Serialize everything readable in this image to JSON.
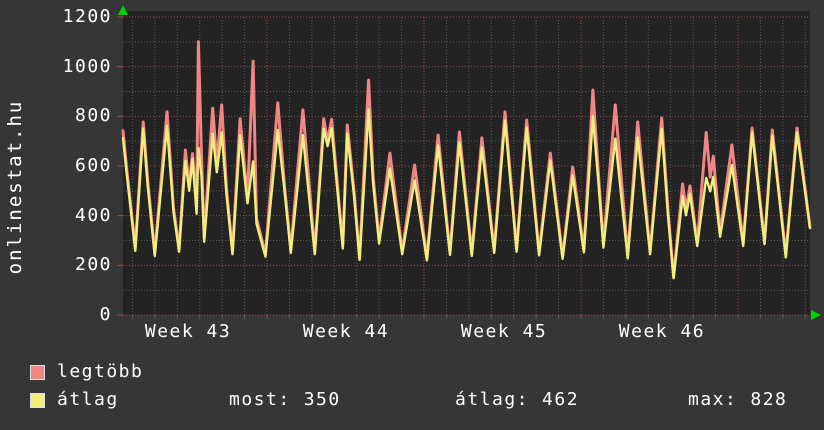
{
  "watermark": "onlinestat.hu",
  "chart_data": {
    "type": "line",
    "title": "",
    "ylabel": "",
    "xlabel": "",
    "ylim": [
      0,
      1200
    ],
    "y_major_ticks": [
      0,
      200,
      400,
      600,
      800,
      1000,
      1200
    ],
    "y_minor_ticks": [
      100,
      300,
      500,
      700,
      900,
      1100
    ],
    "x_total_days": 30.63,
    "x_grid": {
      "first_day_line": 0.42,
      "n_day_lines": 31,
      "week_every": 7
    },
    "x_labels": [
      {
        "text": "Week 43",
        "center_day": 2.9
      },
      {
        "text": "Week 44",
        "center_day": 9.94
      },
      {
        "text": "Week 45",
        "center_day": 16.99
      },
      {
        "text": "Week 46",
        "center_day": 24.03
      }
    ],
    "grid": {
      "on": true,
      "minor_color": "#5a5a5a",
      "major_color": "#a34a4a"
    },
    "axis_arrow_color": "#00d400",
    "plot_bg": "#232323",
    "series": [
      {
        "name": "legtöbb",
        "color": "#f08585",
        "width": 3
      },
      {
        "name": "átlag",
        "color": "#f1ef7c",
        "width": 2.4
      }
    ],
    "samples_day_max_avg": [
      [
        0.0,
        742,
        712
      ],
      [
        0.15,
        600,
        580
      ],
      [
        0.55,
        272,
        258
      ],
      [
        0.9,
        777,
        750
      ],
      [
        1.1,
        540,
        520
      ],
      [
        1.42,
        248,
        238
      ],
      [
        1.96,
        818,
        762
      ],
      [
        2.25,
        430,
        415
      ],
      [
        2.5,
        268,
        255
      ],
      [
        2.78,
        664,
        620
      ],
      [
        2.95,
        520,
        500
      ],
      [
        3.1,
        650,
        628
      ],
      [
        3.28,
        430,
        408
      ],
      [
        3.36,
        1100,
        672
      ],
      [
        3.5,
        640,
        560
      ],
      [
        3.62,
        310,
        295
      ],
      [
        4.0,
        833,
        730
      ],
      [
        4.18,
        610,
        575
      ],
      [
        4.4,
        846,
        735
      ],
      [
        4.62,
        500,
        480
      ],
      [
        4.88,
        255,
        245
      ],
      [
        5.22,
        790,
        724
      ],
      [
        5.55,
        470,
        450
      ],
      [
        5.8,
        1022,
        618
      ],
      [
        5.95,
        390,
        368
      ],
      [
        6.35,
        245,
        235
      ],
      [
        6.9,
        855,
        745
      ],
      [
        7.2,
        520,
        500
      ],
      [
        7.48,
        262,
        250
      ],
      [
        8.02,
        826,
        724
      ],
      [
        8.55,
        255,
        245
      ],
      [
        8.95,
        790,
        750
      ],
      [
        9.12,
        700,
        680
      ],
      [
        9.3,
        788,
        752
      ],
      [
        9.8,
        280,
        268
      ],
      [
        10.0,
        765,
        730
      ],
      [
        10.3,
        500,
        480
      ],
      [
        10.55,
        230,
        222
      ],
      [
        10.95,
        946,
        828
      ],
      [
        11.15,
        560,
        530
      ],
      [
        11.42,
        300,
        288
      ],
      [
        11.9,
        652,
        590
      ],
      [
        12.45,
        255,
        245
      ],
      [
        13.0,
        604,
        542
      ],
      [
        13.55,
        228,
        220
      ],
      [
        14.05,
        725,
        683
      ],
      [
        14.58,
        252,
        242
      ],
      [
        15.0,
        737,
        695
      ],
      [
        15.55,
        248,
        238
      ],
      [
        16.0,
        713,
        675
      ],
      [
        16.55,
        260,
        250
      ],
      [
        17.03,
        818,
        783
      ],
      [
        17.55,
        265,
        255
      ],
      [
        18.0,
        785,
        755
      ],
      [
        18.55,
        250,
        240
      ],
      [
        19.05,
        652,
        622
      ],
      [
        19.6,
        235,
        226
      ],
      [
        20.05,
        596,
        562
      ],
      [
        20.55,
        262,
        252
      ],
      [
        20.95,
        906,
        800
      ],
      [
        21.2,
        560,
        530
      ],
      [
        21.42,
        285,
        272
      ],
      [
        21.95,
        846,
        710
      ],
      [
        22.5,
        238,
        228
      ],
      [
        22.95,
        777,
        715
      ],
      [
        23.5,
        255,
        245
      ],
      [
        24.02,
        793,
        750
      ],
      [
        24.3,
        420,
        400
      ],
      [
        24.55,
        152,
        148
      ],
      [
        24.95,
        528,
        478
      ],
      [
        25.1,
        425,
        402
      ],
      [
        25.28,
        520,
        488
      ],
      [
        25.6,
        288,
        278
      ],
      [
        26.0,
        735,
        552
      ],
      [
        26.18,
        555,
        498
      ],
      [
        26.32,
        640,
        556
      ],
      [
        26.62,
        330,
        315
      ],
      [
        27.15,
        685,
        604
      ],
      [
        27.65,
        290,
        278
      ],
      [
        28.05,
        753,
        735
      ],
      [
        28.6,
        295,
        285
      ],
      [
        28.95,
        745,
        723
      ],
      [
        29.55,
        242,
        232
      ],
      [
        30.05,
        753,
        735
      ],
      [
        30.4,
        520,
        505
      ],
      [
        30.63,
        352,
        350
      ]
    ]
  },
  "legend": {
    "entries": [
      {
        "label": "legtöbb",
        "color": "#f08585"
      },
      {
        "label": "átlag",
        "color": "#f1ef7c"
      }
    ]
  },
  "stats": [
    {
      "label": "most:",
      "value": "350"
    },
    {
      "label": "átlag:",
      "value": "462"
    },
    {
      "label": "max:",
      "value": "828"
    }
  ]
}
